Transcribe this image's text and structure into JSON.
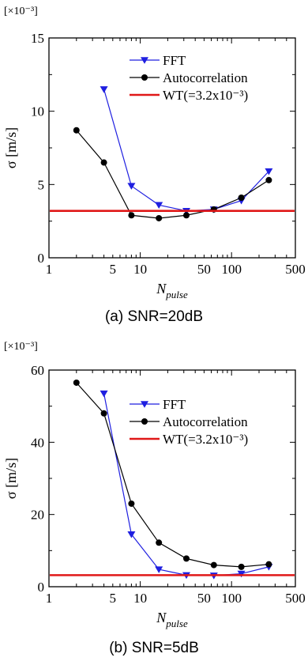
{
  "chart_data": [
    {
      "type": "line",
      "caption": "(a) SNR=20dB",
      "multiplier_label": "[×10⁻³]",
      "ylabel": "σ [m/s]",
      "xlabel": "N",
      "xlabel_sub": "pulse",
      "xscale": "log",
      "xlim": [
        1,
        500
      ],
      "ylim": [
        0,
        15
      ],
      "xticks": [
        1,
        5,
        10,
        50,
        100,
        500
      ],
      "xtick_labels": [
        "1",
        "5",
        "10",
        "50",
        "100",
        "500"
      ],
      "yticks": [
        0,
        5,
        10,
        15
      ],
      "ytick_labels": [
        "0",
        "5",
        "10",
        "15"
      ],
      "legend_position": "top-right",
      "series": [
        {
          "name": "FFT",
          "color": "#1f1fe0",
          "marker": "triangle-down",
          "x": [
            4,
            8,
            16,
            32,
            64,
            128,
            256
          ],
          "values": [
            11.5,
            4.9,
            3.6,
            3.2,
            3.3,
            3.9,
            5.9
          ]
        },
        {
          "name": "Autocorrelation",
          "color": "#000000",
          "marker": "circle",
          "x": [
            2,
            4,
            8,
            16,
            32,
            64,
            128,
            256
          ],
          "values": [
            8.7,
            6.5,
            2.9,
            2.7,
            2.9,
            3.3,
            4.1,
            5.3
          ]
        },
        {
          "name": "WT(=3.2x10⁻³)",
          "color": "#e01818",
          "marker": "none",
          "hline": 3.2
        }
      ]
    },
    {
      "type": "line",
      "caption": "(b) SNR=5dB",
      "multiplier_label": "[×10⁻³]",
      "ylabel": "σ [m/s]",
      "xlabel": "N",
      "xlabel_sub": "pulse",
      "xscale": "log",
      "xlim": [
        1,
        500
      ],
      "ylim": [
        0,
        60
      ],
      "xticks": [
        1,
        5,
        10,
        50,
        100,
        500
      ],
      "xtick_labels": [
        "1",
        "5",
        "10",
        "50",
        "100",
        "500"
      ],
      "yticks": [
        0,
        20,
        40,
        60
      ],
      "ytick_labels": [
        "0",
        "20",
        "40",
        "60"
      ],
      "legend_position": "top-right",
      "series": [
        {
          "name": "FFT",
          "color": "#1f1fe0",
          "marker": "triangle-down",
          "x": [
            4,
            8,
            16,
            32,
            64,
            128,
            256
          ],
          "values": [
            53.5,
            14.5,
            4.8,
            3.2,
            3.1,
            3.6,
            5.5
          ]
        },
        {
          "name": "Autocorrelation",
          "color": "#000000",
          "marker": "circle",
          "x": [
            2,
            4,
            8,
            16,
            32,
            64,
            128,
            256
          ],
          "values": [
            56.5,
            48.0,
            23.0,
            12.2,
            7.8,
            6.0,
            5.5,
            6.2
          ]
        },
        {
          "name": "WT(=3.2x10⁻³)",
          "color": "#e01818",
          "marker": "none",
          "hline": 3.2
        }
      ]
    }
  ]
}
